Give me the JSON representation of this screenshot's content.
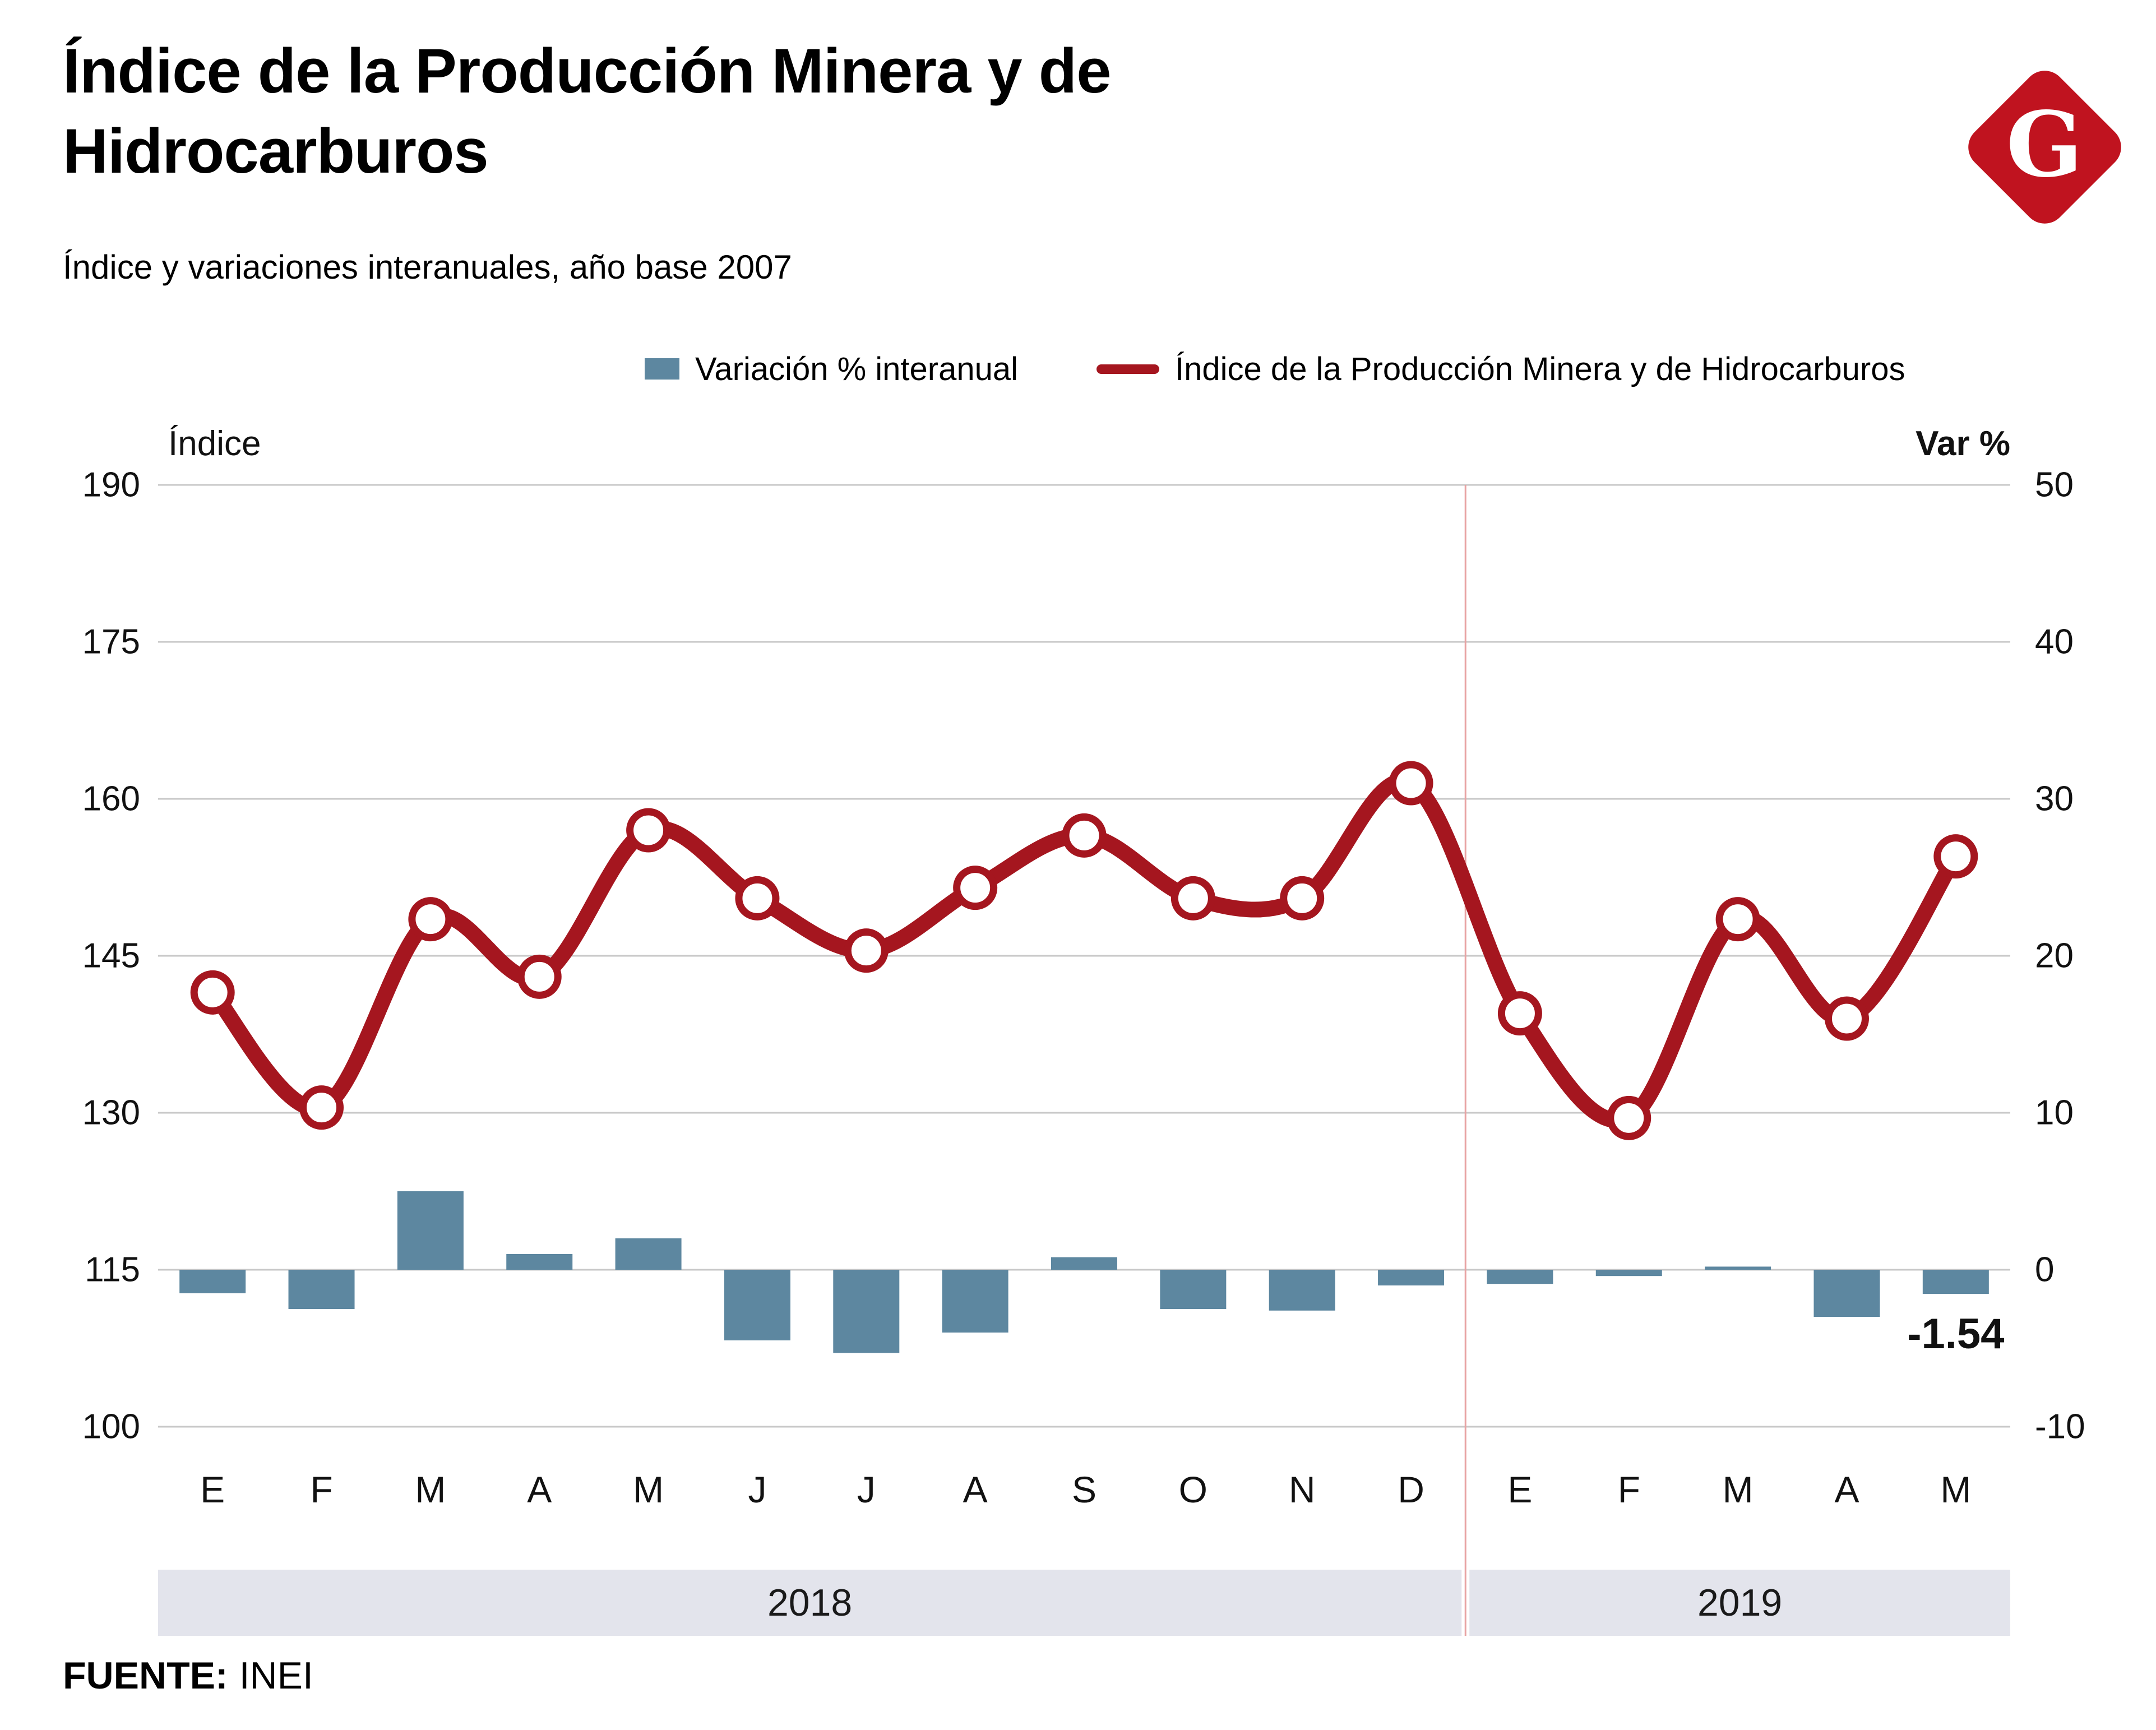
{
  "header": {
    "title_line1": "Índice de la Producción Minera y de",
    "title_line2": "Hidrocarburos",
    "subtitle": "Índice y variaciones interanuales, año base 2007",
    "logo_letter": "G"
  },
  "legend": {
    "bars_label": "Variación % interanual",
    "line_label": "Índice de la Producción Minera y de Hidrocarburos"
  },
  "footer": {
    "source_label": "FUENTE:",
    "source_value": "INEI"
  },
  "style": {
    "line_red": "#a5161f",
    "bar_blue": "#5d87a0",
    "band": "#e3e4ec",
    "grid": "#c8c8c8",
    "separator": "#e8a3a3",
    "logo_red": "#c0131f",
    "text_dark": "#111111"
  },
  "chart_data": {
    "type": "bar+line",
    "title": "Índice de la Producción Minera y de Hidrocarburos",
    "subtitle": "Índice y variaciones interanuales, año base 2007",
    "left_axis": {
      "title": "Índice",
      "ticks": [
        190,
        175,
        160,
        145,
        130,
        115,
        100
      ],
      "range": [
        100,
        190
      ]
    },
    "right_axis": {
      "title": "Var %",
      "ticks": [
        50,
        40,
        30,
        20,
        10,
        0,
        -10
      ],
      "range": [
        -10,
        50
      ]
    },
    "categories": [
      "E",
      "F",
      "M",
      "A",
      "M",
      "J",
      "J",
      "A",
      "S",
      "O",
      "N",
      "D",
      "E",
      "F",
      "M",
      "A",
      "M"
    ],
    "year_groups": [
      {
        "label": "2018",
        "from": 0,
        "to": 11
      },
      {
        "label": "2019",
        "from": 12,
        "to": 16
      }
    ],
    "series": [
      {
        "name": "Variación % interanual",
        "type": "bar",
        "axis": "right",
        "color": "#5d87a0",
        "values": [
          -1.5,
          -2.5,
          5.0,
          1.0,
          2.0,
          -4.5,
          -5.3,
          -4.0,
          0.8,
          -2.5,
          -2.6,
          -1.0,
          -0.9,
          -0.4,
          0.2,
          -3.0,
          -1.54
        ]
      },
      {
        "name": "Índice de la Producción Minera y de Hidrocarburos",
        "type": "line",
        "axis": "left",
        "color": "#a5161f",
        "values": [
          141.5,
          130.5,
          148.5,
          143.0,
          157.0,
          150.5,
          145.5,
          151.5,
          156.5,
          150.5,
          150.5,
          161.5,
          139.5,
          129.5,
          148.5,
          139.0,
          154.5
        ]
      }
    ],
    "annotation": {
      "text": "-1.54",
      "month_index": 16
    },
    "grid": true,
    "legend_position": "top"
  }
}
